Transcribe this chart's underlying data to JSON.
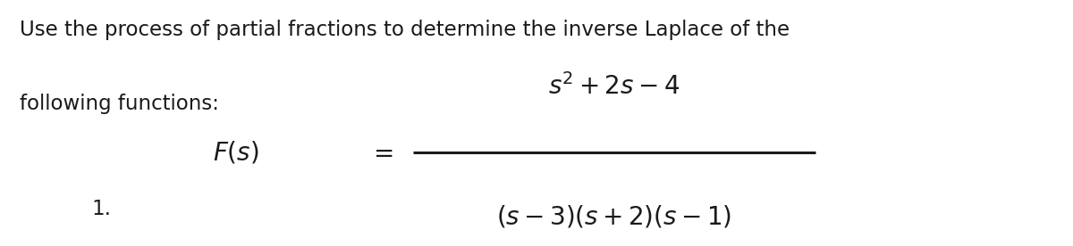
{
  "background_color": "#ffffff",
  "text_line1": "Use the process of partial fractions to determine the inverse Laplace of the",
  "text_line2": "following functions:",
  "text_fontsize": 16.5,
  "text_color": "#1a1a1a",
  "label_1": "1.",
  "label_fontsize": 16.5,
  "math_fontsize": 20,
  "math_fontsize_large": 23
}
